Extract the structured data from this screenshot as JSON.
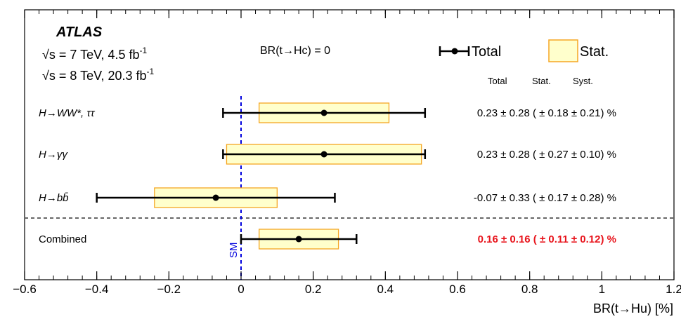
{
  "chart_data": {
    "type": "scatter",
    "experiment": "ATLAS",
    "energy_lines": [
      {
        "sqrt": "√s",
        "text": " = 7 TeV, 4.5 fb",
        "sup": "-1"
      },
      {
        "sqrt": "√s",
        "text": " = 8 TeV, 20.3 fb",
        "sup": "-1"
      }
    ],
    "condition": "BR(t→Hc) = 0",
    "legend": {
      "total": "Total",
      "stat": "Stat."
    },
    "column_headers": {
      "total": "Total",
      "stat": "Stat.",
      "syst": "Syst."
    },
    "xlabel": "BR(t→Hu) [%]",
    "xlim": [
      -0.6,
      1.2
    ],
    "xticks": [
      -0.6,
      -0.4,
      -0.2,
      0,
      0.2,
      0.4,
      0.6,
      0.8,
      1,
      1.2
    ],
    "xtick_labels": [
      "−0.6",
      "−0.4",
      "−0.2",
      "0",
      "0.2",
      "0.4",
      "0.6",
      "0.8",
      "1",
      "1.2"
    ],
    "sm_label": "SM",
    "sm_value": 0,
    "series": [
      {
        "channel": "H→WW*, ττ",
        "central": 0.23,
        "total": 0.28,
        "stat": 0.18,
        "syst": 0.21,
        "result_text": "0.23 ± 0.28 ( ± 0.18 ± 0.21) %",
        "highlight": false
      },
      {
        "channel": "H→γγ",
        "central": 0.23,
        "total": 0.28,
        "stat": 0.27,
        "syst": 0.1,
        "result_text": "0.23 ± 0.28 ( ± 0.27 ± 0.10) %",
        "highlight": false
      },
      {
        "channel": "H→bb̄",
        "central": -0.07,
        "total": 0.33,
        "stat": 0.17,
        "syst": 0.28,
        "result_text": "-0.07 ± 0.33 ( ± 0.17 ± 0.28) %",
        "highlight": false
      },
      {
        "channel": "Combined",
        "central": 0.16,
        "total": 0.16,
        "stat": 0.11,
        "syst": 0.12,
        "result_text": "0.16 ± 0.16 ( ± 0.11 ± 0.12) %",
        "highlight": true
      }
    ],
    "colors": {
      "stat_fill": "#ffffcc",
      "stat_edge": "#f5a623",
      "sm_line": "#0000dd",
      "highlight": "#e8141c",
      "separator": "#666666"
    }
  }
}
